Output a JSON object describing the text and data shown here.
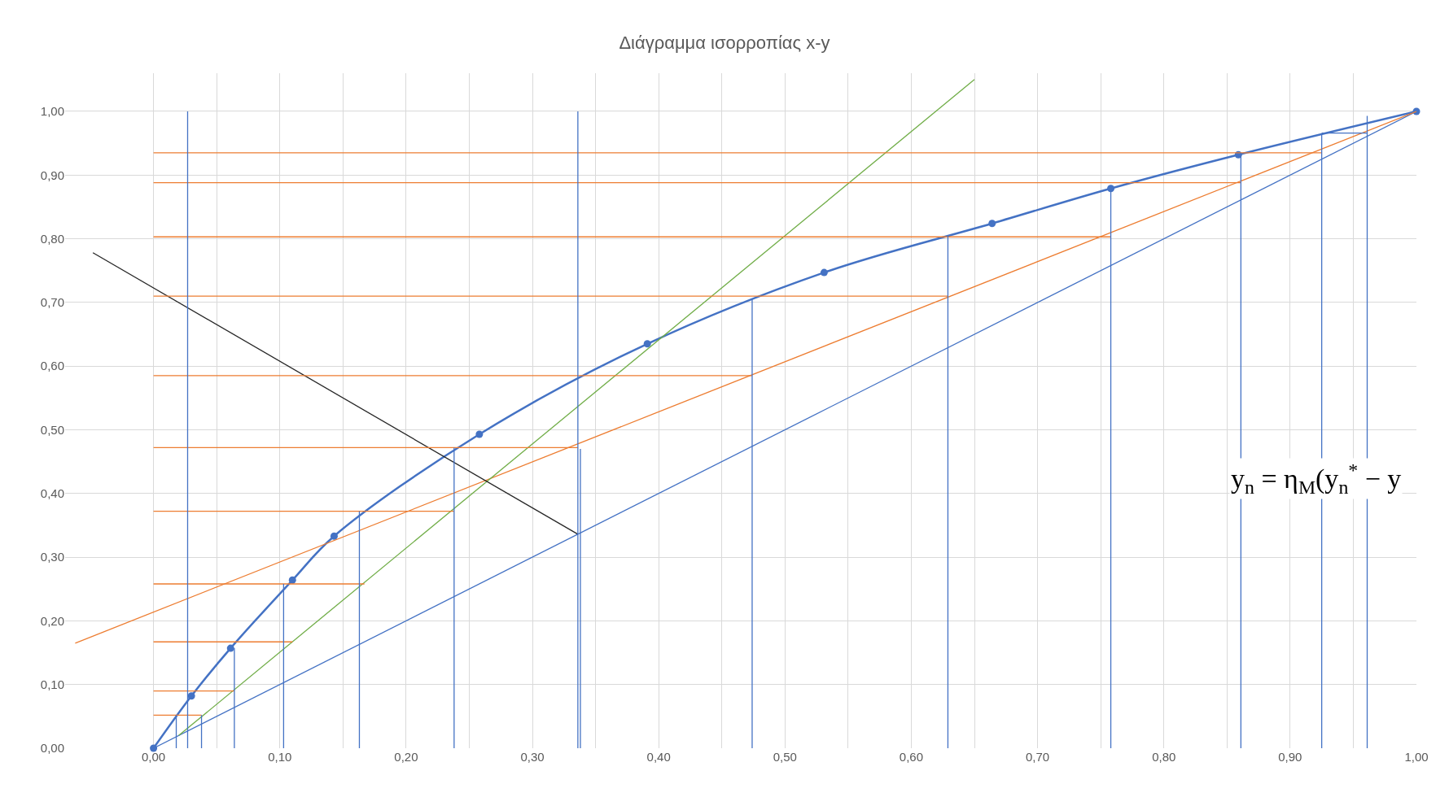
{
  "chart_data": {
    "type": "line",
    "title": "Διάγραμμα ισορροπίας x-y",
    "xlim": [
      -0.07,
      1.0
    ],
    "ylim": [
      0,
      1.06
    ],
    "xticks": [
      {
        "value": 0,
        "label": "0,00"
      },
      {
        "value": 0.05,
        "label": null
      },
      {
        "value": 0.1,
        "label": "0,10"
      },
      {
        "value": 0.15,
        "label": null
      },
      {
        "value": 0.2,
        "label": "0,20"
      },
      {
        "value": 0.25,
        "label": null
      },
      {
        "value": 0.3,
        "label": "0,30"
      },
      {
        "value": 0.35,
        "label": null
      },
      {
        "value": 0.4,
        "label": "0,40"
      },
      {
        "value": 0.45,
        "label": null
      },
      {
        "value": 0.5,
        "label": "0,50"
      },
      {
        "value": 0.55,
        "label": null
      },
      {
        "value": 0.6,
        "label": "0,60"
      },
      {
        "value": 0.65,
        "label": null
      },
      {
        "value": 0.7,
        "label": "0,70"
      },
      {
        "value": 0.75,
        "label": null
      },
      {
        "value": 0.8,
        "label": "0,80"
      },
      {
        "value": 0.85,
        "label": null
      },
      {
        "value": 0.9,
        "label": "0,90"
      },
      {
        "value": 0.95,
        "label": null
      },
      {
        "value": 1.0,
        "label": "1,00"
      }
    ],
    "yticks": [
      {
        "value": 0,
        "label": "0,00"
      },
      {
        "value": 0.1,
        "label": "0,10"
      },
      {
        "value": 0.2,
        "label": "0,20"
      },
      {
        "value": 0.3,
        "label": "0,30"
      },
      {
        "value": 0.4,
        "label": "0,40"
      },
      {
        "value": 0.5,
        "label": "0,50"
      },
      {
        "value": 0.6,
        "label": "0,60"
      },
      {
        "value": 0.7,
        "label": "0,70"
      },
      {
        "value": 0.8,
        "label": "0,80"
      },
      {
        "value": 0.9,
        "label": "0,90"
      },
      {
        "value": 1.0,
        "label": "1,00"
      }
    ],
    "grid": true,
    "annotations": [
      "y$_{n}$ = η$_{Μ}$(y$_{n}$$^{*}$ − y"
    ],
    "series": [
      {
        "color": "#4472c4",
        "marker": "circle",
        "x": [
          0,
          0.03,
          0.061,
          0.11,
          0.143,
          0.258,
          0.391,
          0.531,
          0.664,
          0.758,
          0.859,
          1.0
        ],
        "values": [
          0,
          0.082,
          0.157,
          0.264,
          0.333,
          0.493,
          0.635,
          0.747,
          0.824,
          0.879,
          0.932,
          1.0
        ]
      },
      {
        "color": "#4472c4",
        "x": [
          0,
          1
        ],
        "values": [
          0,
          1
        ]
      },
      {
        "color": "#ed7d31",
        "x": [
          -0.062,
          1
        ],
        "values": [
          0.165,
          1
        ]
      },
      {
        "color": "#70ad47",
        "x": [
          0.02,
          0.65
        ],
        "values": [
          0.02,
          1.05
        ]
      },
      {
        "color": "#262626",
        "x": [
          -0.048,
          0.336
        ],
        "values": [
          0.778,
          0.336
        ]
      },
      {
        "color": "#ed7d31",
        "x": [
          0,
          0.925
        ],
        "values": [
          0.935,
          0.935
        ]
      },
      {
        "color": "#ed7d31",
        "x": [
          0,
          0.861
        ],
        "values": [
          0.888,
          0.888
        ]
      },
      {
        "color": "#ed7d31",
        "x": [
          0,
          0.758
        ],
        "values": [
          0.803,
          0.803
        ]
      },
      {
        "color": "#ed7d31",
        "x": [
          0,
          0.629
        ],
        "values": [
          0.71,
          0.71
        ]
      },
      {
        "color": "#ed7d31",
        "x": [
          0,
          0.474
        ],
        "values": [
          0.585,
          0.585
        ]
      },
      {
        "color": "#ed7d31",
        "x": [
          0,
          0.336
        ],
        "values": [
          0.472,
          0.472
        ]
      },
      {
        "color": "#ed7d31",
        "x": [
          0,
          0.238
        ],
        "values": [
          0.372,
          0.372
        ]
      },
      {
        "color": "#ed7d31",
        "x": [
          0,
          0.167
        ],
        "values": [
          0.258,
          0.258
        ]
      },
      {
        "color": "#ed7d31",
        "x": [
          0,
          0.11
        ],
        "values": [
          0.167,
          0.167
        ]
      },
      {
        "color": "#ed7d31",
        "x": [
          0,
          0.064
        ],
        "values": [
          0.09,
          0.09
        ]
      },
      {
        "color": "#ed7d31",
        "x": [
          0,
          0.038
        ],
        "values": [
          0.052,
          0.052
        ]
      },
      {
        "color": "#4472c4",
        "x": [
          0.027,
          0.027
        ],
        "values": [
          0,
          1.0
        ]
      },
      {
        "color": "#4472c4",
        "x": [
          0.336,
          0.336
        ],
        "values": [
          0,
          1.0
        ]
      },
      {
        "color": "#4472c4",
        "x": [
          0.338,
          0.338
        ],
        "values": [
          0,
          0.47
        ]
      },
      {
        "color": "#4472c4",
        "x": [
          0.018,
          0.018
        ],
        "values": [
          0,
          0.052
        ]
      },
      {
        "color": "#4472c4",
        "x": [
          0.038,
          0.038
        ],
        "values": [
          0,
          0.052
        ]
      },
      {
        "color": "#4472c4",
        "x": [
          0.064,
          0.064
        ],
        "values": [
          0,
          0.157
        ]
      },
      {
        "color": "#4472c4",
        "x": [
          0.103,
          0.103
        ],
        "values": [
          0,
          0.258
        ]
      },
      {
        "color": "#4472c4",
        "x": [
          0.163,
          0.163
        ],
        "values": [
          0,
          0.372
        ]
      },
      {
        "color": "#4472c4",
        "x": [
          0.238,
          0.238
        ],
        "values": [
          0,
          0.472
        ]
      },
      {
        "color": "#4472c4",
        "x": [
          0.474,
          0.474
        ],
        "values": [
          0,
          0.706
        ]
      },
      {
        "color": "#4472c4",
        "x": [
          0.629,
          0.629
        ],
        "values": [
          0,
          0.806
        ]
      },
      {
        "color": "#4472c4",
        "x": [
          0.758,
          0.758
        ],
        "values": [
          0,
          0.882
        ]
      },
      {
        "color": "#4472c4",
        "x": [
          0.861,
          0.861
        ],
        "values": [
          0,
          0.935
        ]
      },
      {
        "color": "#4472c4",
        "x": [
          0.925,
          0.925
        ],
        "values": [
          0,
          0.963
        ]
      },
      {
        "color": "#4472c4",
        "x": [
          0.961,
          0.961
        ],
        "values": [
          0,
          0.993
        ]
      },
      {
        "color": "#4472c4",
        "x": [
          0.925,
          0.961
        ],
        "values": [
          0.966,
          0.966
        ]
      }
    ]
  }
}
